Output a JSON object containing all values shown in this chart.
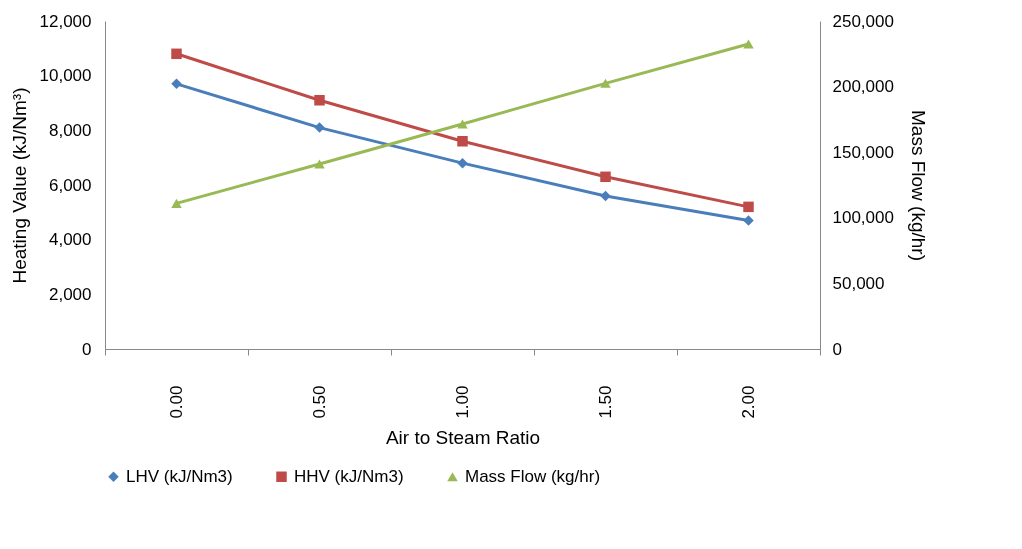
{
  "chart_data": {
    "type": "line",
    "xlabel": "Air to Steam Ratio",
    "ylabel": "Heating Value (kJ/Nm³)",
    "y2label": "Mass Flow (kg/hr)",
    "categories": [
      "0.00",
      "0.50",
      "1.00",
      "1.50",
      "2.00"
    ],
    "series": [
      {
        "name": "LHV (kJ/Nm3)",
        "color": "#4a7ebb",
        "marker": "diamond",
        "values": [
          9700,
          8100,
          6800,
          5600,
          4700
        ]
      },
      {
        "name": "HHV (kJ/Nm3)",
        "color": "#be4b48",
        "marker": "square",
        "values": [
          10800,
          9100,
          7600,
          6300,
          5200
        ]
      },
      {
        "name": "Mass Flow (kg/hr)",
        "color": "#98b954",
        "marker": "triangle",
        "axis": "y2",
        "values": [
          111000,
          141000,
          171500,
          202500,
          232500
        ]
      }
    ],
    "ylim": [
      0,
      12000
    ],
    "yticks": [
      {
        "value": 0,
        "label": "0"
      },
      {
        "value": 2000,
        "label": "2,000"
      },
      {
        "value": 4000,
        "label": "4,000"
      },
      {
        "value": 6000,
        "label": "6,000"
      },
      {
        "value": 8000,
        "label": "8,000"
      },
      {
        "value": 10000,
        "label": "10,000"
      },
      {
        "value": 12000,
        "label": "12,000"
      }
    ],
    "y2lim": [
      0,
      250000
    ],
    "y2ticks": [
      {
        "value": 0,
        "label": "0"
      },
      {
        "value": 50000,
        "label": "50,000"
      },
      {
        "value": 100000,
        "label": "100,000"
      },
      {
        "value": 150000,
        "label": "150,000"
      },
      {
        "value": 200000,
        "label": "200,000"
      },
      {
        "value": 250000,
        "label": "250,000"
      }
    ],
    "grid": false,
    "legend": "bottom",
    "line_style": "solid"
  }
}
